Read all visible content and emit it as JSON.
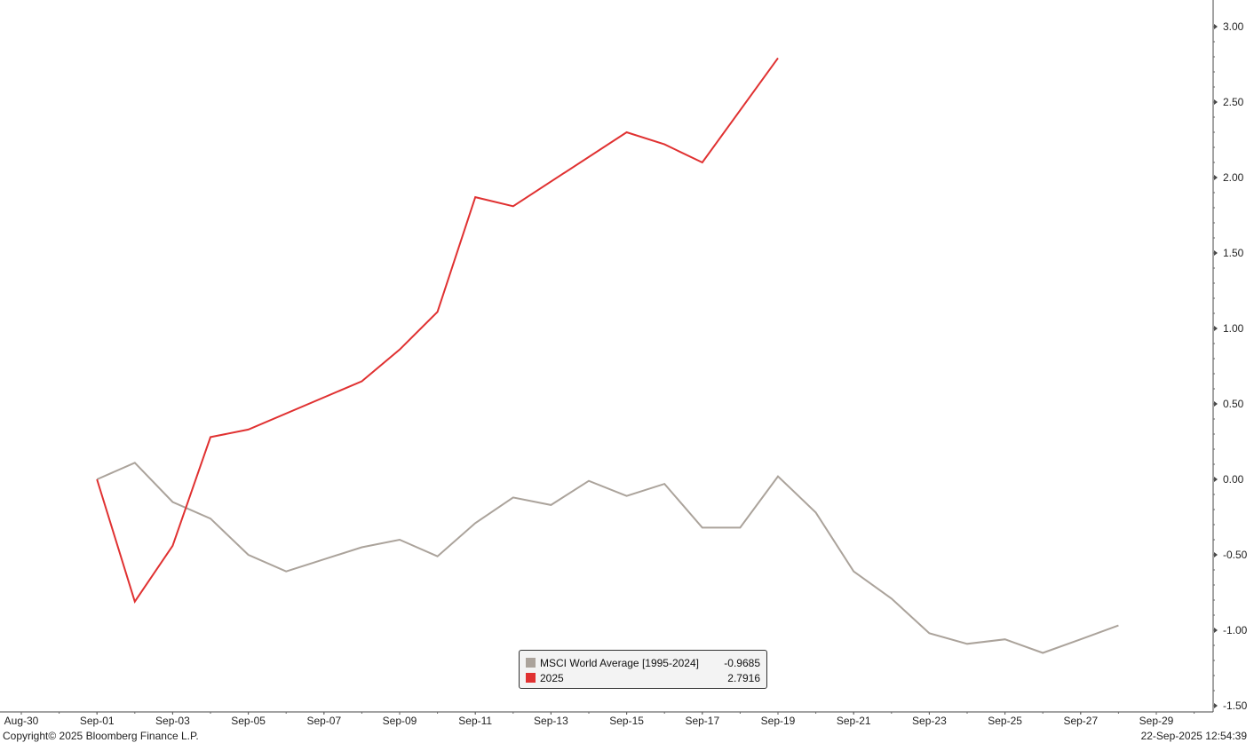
{
  "chart_data": {
    "type": "line",
    "x_axis": {
      "type": "date",
      "tick_labels": [
        "Aug-30",
        "Sep-01",
        "Sep-03",
        "Sep-05",
        "Sep-07",
        "Sep-09",
        "Sep-11",
        "Sep-13",
        "Sep-15",
        "Sep-17",
        "Sep-19",
        "Sep-21",
        "Sep-23",
        "Sep-25",
        "Sep-27",
        "Sep-29"
      ],
      "range": [
        "2025-08-30",
        "2025-09-30"
      ]
    },
    "y_axis": {
      "position": "right",
      "range": [
        -1.5,
        3.1
      ],
      "tick_labels": [
        "3.00",
        "2.50",
        "2.00",
        "1.50",
        "1.00",
        "0.50",
        "0.00",
        "-0.50",
        "-1.00",
        "-1.50"
      ],
      "tick_values": [
        3.0,
        2.5,
        2.0,
        1.5,
        1.0,
        0.5,
        0.0,
        -0.5,
        -1.0,
        -1.5
      ]
    },
    "grid": false,
    "legend_position": "bottom-center",
    "series": [
      {
        "name": "MSCI World Average [1995-2024]",
        "last_value": "-0.9685",
        "color": "#aba39b",
        "points": [
          [
            "2025-09-01",
            0.0
          ],
          [
            "2025-09-02",
            0.11
          ],
          [
            "2025-09-03",
            -0.15
          ],
          [
            "2025-09-04",
            -0.26
          ],
          [
            "2025-09-05",
            -0.5
          ],
          [
            "2025-09-06",
            -0.61
          ],
          [
            "2025-09-07",
            -0.53
          ],
          [
            "2025-09-08",
            -0.45
          ],
          [
            "2025-09-09",
            -0.4
          ],
          [
            "2025-09-10",
            -0.51
          ],
          [
            "2025-09-11",
            -0.29
          ],
          [
            "2025-09-12",
            -0.12
          ],
          [
            "2025-09-13",
            -0.17
          ],
          [
            "2025-09-14",
            -0.01
          ],
          [
            "2025-09-15",
            -0.11
          ],
          [
            "2025-09-16",
            -0.03
          ],
          [
            "2025-09-17",
            -0.32
          ],
          [
            "2025-09-18",
            -0.32
          ],
          [
            "2025-09-19",
            0.02
          ],
          [
            "2025-09-20",
            -0.22
          ],
          [
            "2025-09-21",
            -0.61
          ],
          [
            "2025-09-22",
            -0.79
          ],
          [
            "2025-09-23",
            -1.02
          ],
          [
            "2025-09-24",
            -1.09
          ],
          [
            "2025-09-25",
            -1.06
          ],
          [
            "2025-09-26",
            -1.15
          ],
          [
            "2025-09-27",
            -1.06
          ],
          [
            "2025-09-28",
            -0.9685
          ]
        ]
      },
      {
        "name": "2025",
        "last_value": "2.7916",
        "color": "#e03131",
        "points": [
          [
            "2025-09-01",
            0.0
          ],
          [
            "2025-09-02",
            -0.81
          ],
          [
            "2025-09-03",
            -0.44
          ],
          [
            "2025-09-04",
            0.28
          ],
          [
            "2025-09-05",
            0.33
          ],
          [
            "2025-09-08",
            0.65
          ],
          [
            "2025-09-09",
            0.86
          ],
          [
            "2025-09-10",
            1.11
          ],
          [
            "2025-09-11",
            1.87
          ],
          [
            "2025-09-12",
            1.81
          ],
          [
            "2025-09-15",
            2.3
          ],
          [
            "2025-09-16",
            2.22
          ],
          [
            "2025-09-17",
            2.1
          ],
          [
            "2025-09-19",
            2.7916
          ]
        ]
      }
    ]
  },
  "footer": {
    "copyright": "Copyright© 2025 Bloomberg Finance L.P.",
    "timestamp": "22-Sep-2025 12:54:39"
  }
}
